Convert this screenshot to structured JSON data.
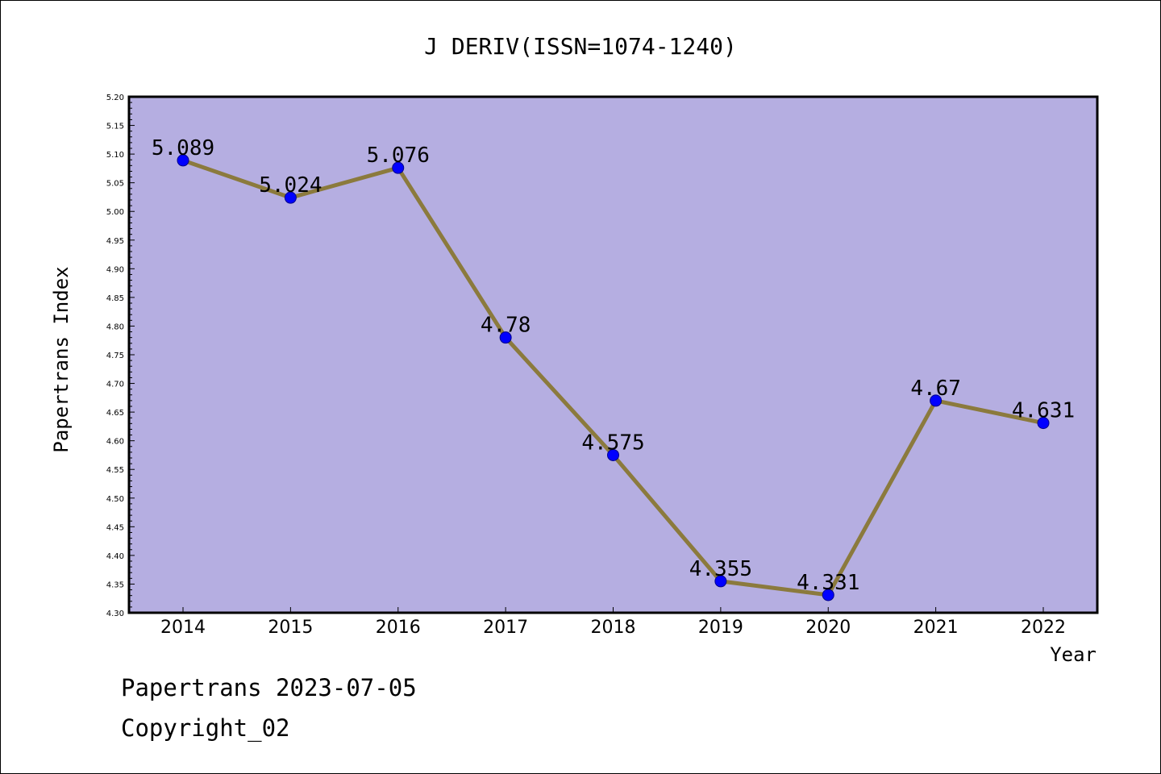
{
  "colors": {
    "plot_background": "#b5aee1",
    "line": "#8b7a3d",
    "marker": "#0000ff",
    "axis": "#000000"
  },
  "chart_data": {
    "type": "line",
    "title": "J DERIV(ISSN=1074-1240)",
    "xlabel": "Year",
    "ylabel": "Papertrans Index",
    "categories": [
      "2014",
      "2015",
      "2016",
      "2017",
      "2018",
      "2019",
      "2020",
      "2021",
      "2022"
    ],
    "series": [
      {
        "values": [
          5.089,
          5.024,
          5.076,
          4.78,
          4.575,
          4.355,
          4.331,
          4.67,
          4.631
        ],
        "labels": [
          "5.089",
          "5.024",
          "5.076",
          "4.78",
          "4.575",
          "4.355",
          "4.331",
          "4.67",
          "4.631"
        ]
      }
    ],
    "ylim": [
      4.3,
      5.2
    ],
    "yticks": [
      "4.30",
      "4.35",
      "4.40",
      "4.45",
      "4.50",
      "4.55",
      "4.60",
      "4.65",
      "4.70",
      "4.75",
      "4.80",
      "4.85",
      "4.90",
      "4.95",
      "5.00",
      "5.05",
      "5.10",
      "5.15",
      "5.20"
    ],
    "grid": false,
    "legend": "none"
  },
  "footer": {
    "line1": "Papertrans 2023-07-05",
    "line2": "Copyright_02"
  }
}
